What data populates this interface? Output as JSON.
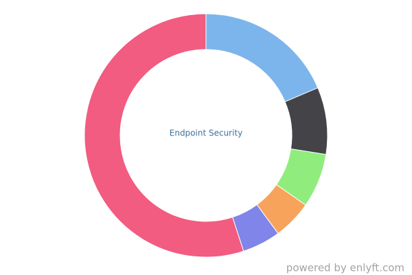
{
  "chart_data": {
    "type": "donut",
    "center_label": "Endpoint Security",
    "values": [
      18.6,
      8.9,
      7.2,
      5.2,
      5.1,
      55.0
    ],
    "colors": [
      "#7cb5ec",
      "#434348",
      "#90ed7d",
      "#f7a35c",
      "#8085e9",
      "#f15c80"
    ]
  },
  "footer": {
    "credit": "powered by enlyft.com"
  }
}
